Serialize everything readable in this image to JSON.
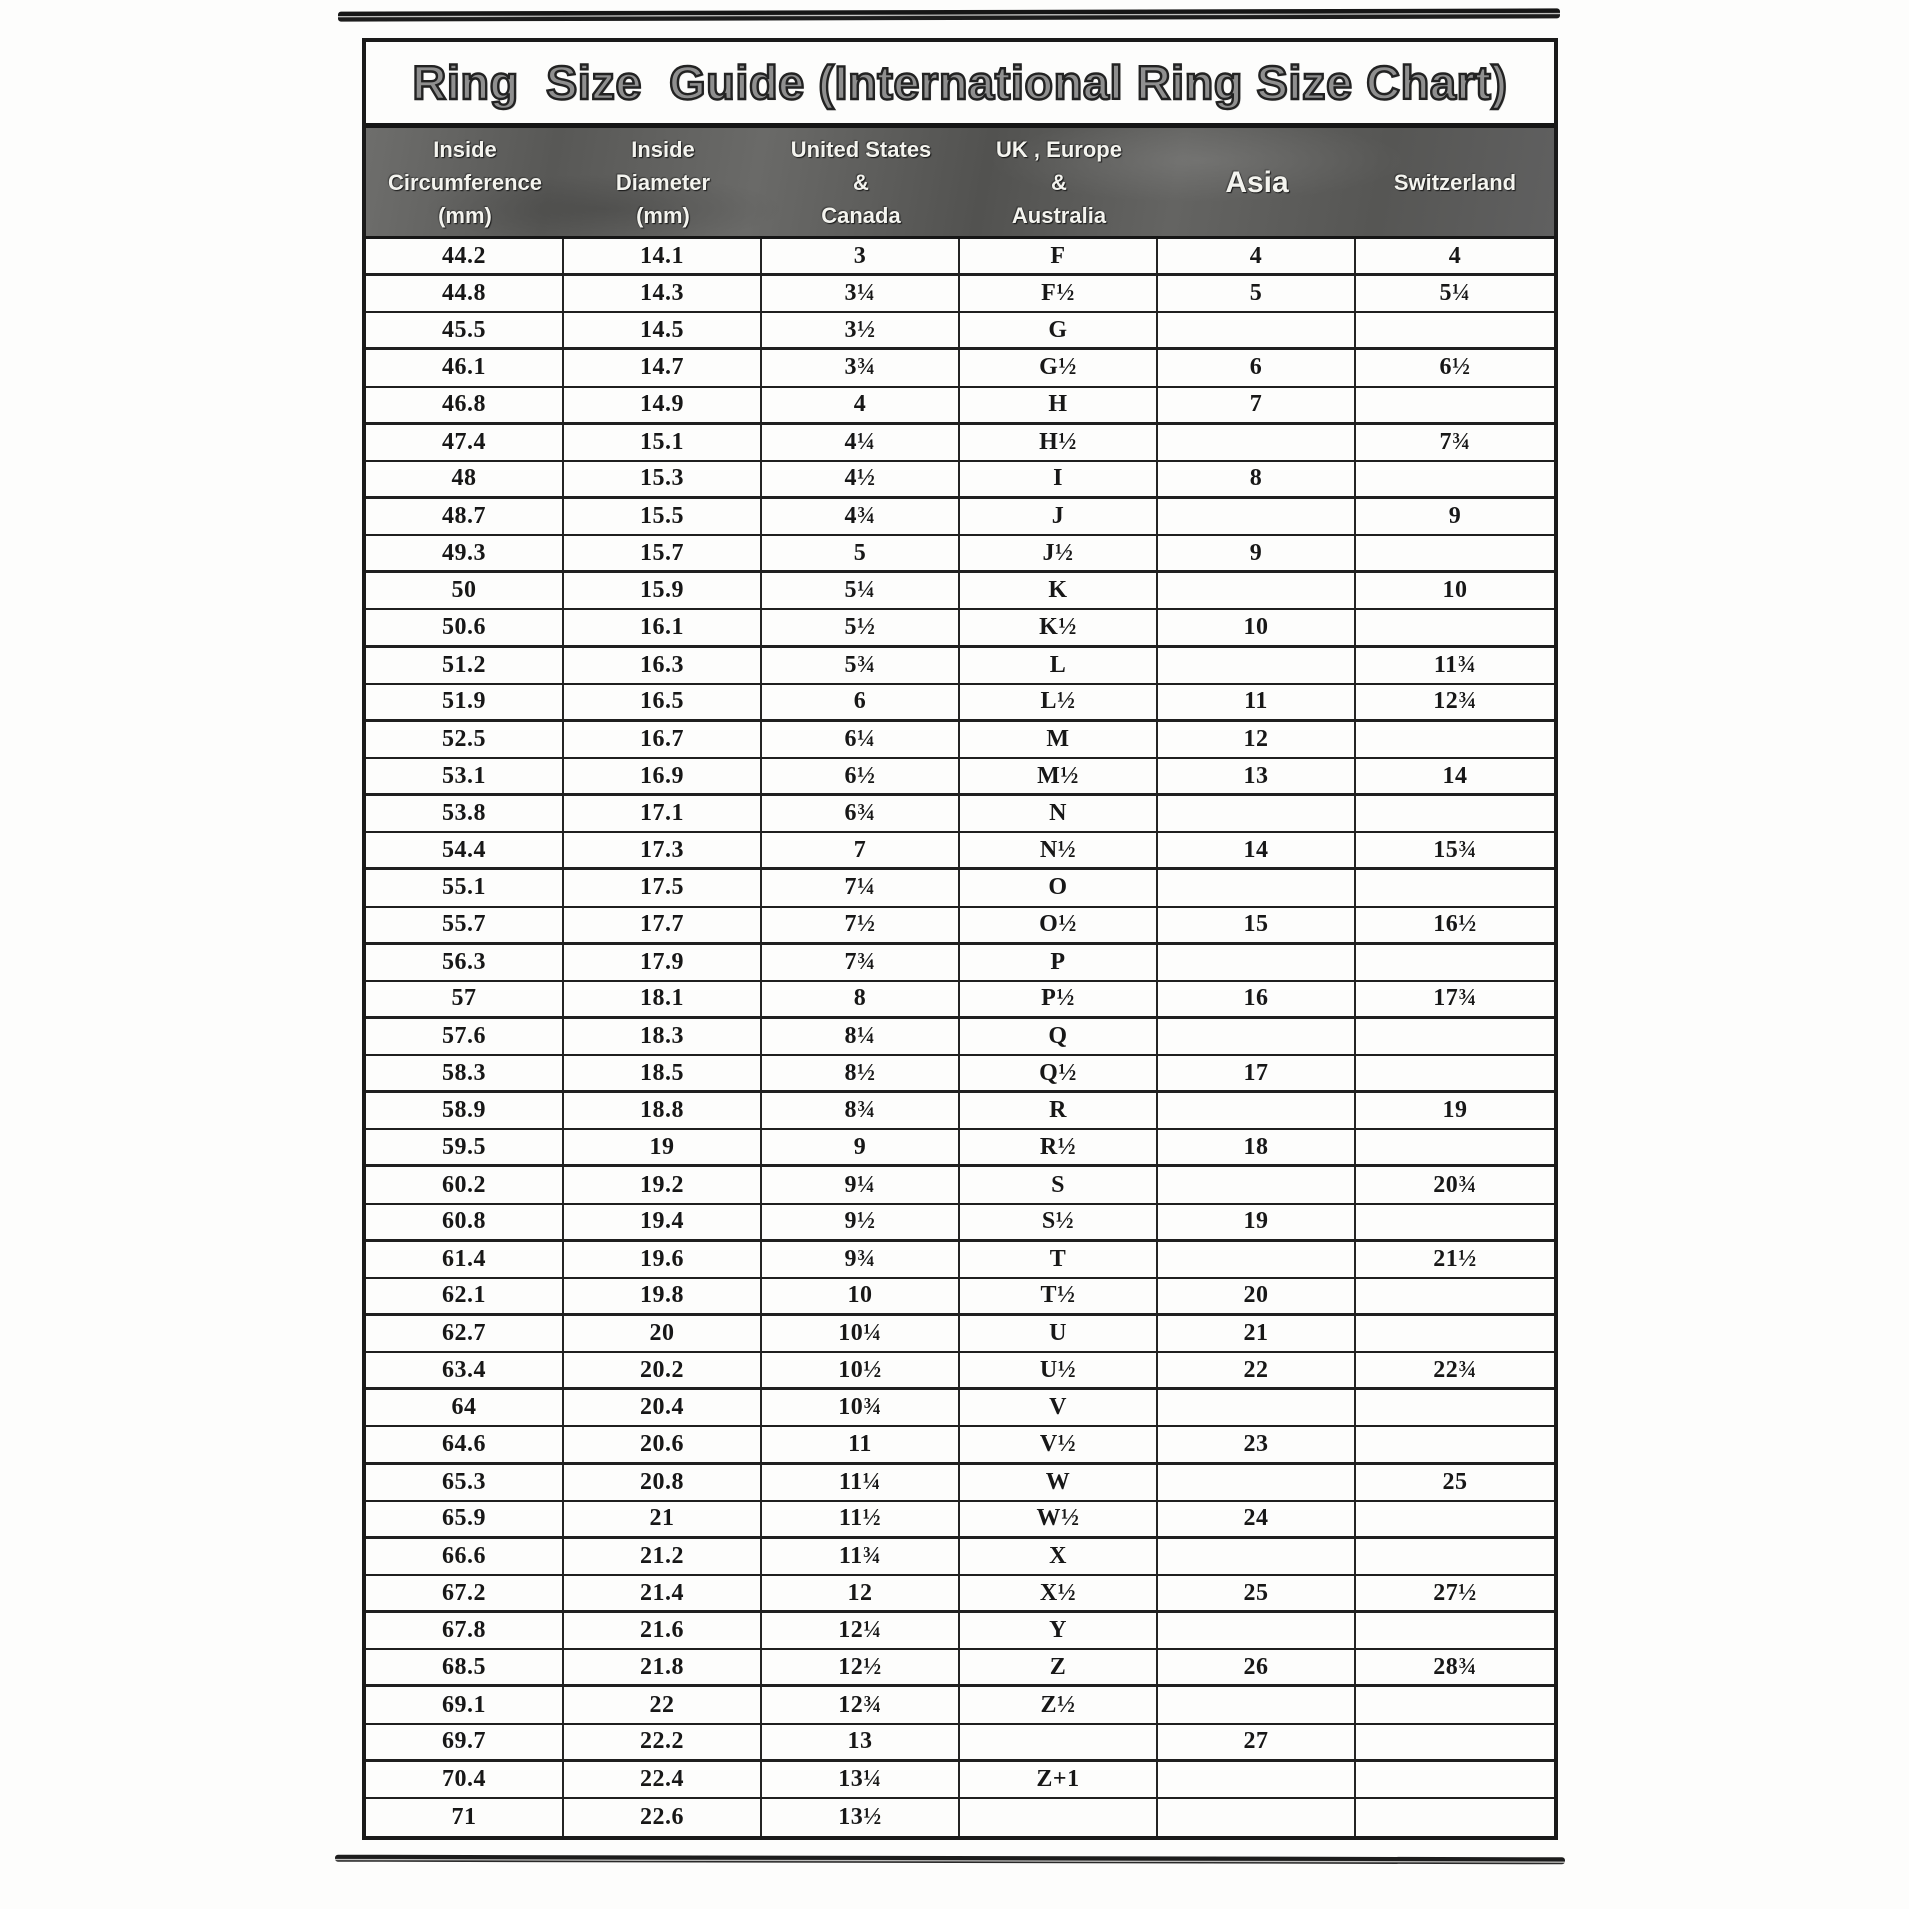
{
  "page": {
    "title": "Ring  Size  Guide (International Ring Size Chart)"
  },
  "colors": {
    "line": "#1a1a1a",
    "header_background": "#5d5d5b",
    "header_text": "#f4f4ef",
    "title_fill": "#8f8f8f",
    "page_background": "#fdfdfc"
  },
  "table": {
    "headers": [
      {
        "lines": [
          "Inside",
          "Circumference",
          "(mm)"
        ],
        "big": false
      },
      {
        "lines": [
          "Inside",
          "Diameter",
          "(mm)"
        ],
        "big": false
      },
      {
        "lines": [
          "United States",
          "&",
          "Canada"
        ],
        "big": false
      },
      {
        "lines": [
          "UK , Europe",
          "&",
          "Australia"
        ],
        "big": false
      },
      {
        "lines": [
          "Asia"
        ],
        "big": true
      },
      {
        "lines": [
          "Switzerland"
        ],
        "big": false
      }
    ],
    "rows": [
      [
        "44.2",
        "14.1",
        "3",
        "F",
        "4",
        "4"
      ],
      [
        "44.8",
        "14.3",
        "3¼",
        "F½",
        "5",
        "5¼"
      ],
      [
        "45.5",
        "14.5",
        "3½",
        "G",
        "",
        ""
      ],
      [
        "46.1",
        "14.7",
        "3¾",
        "G½",
        "6",
        "6½"
      ],
      [
        "46.8",
        "14.9",
        "4",
        "H",
        "7",
        ""
      ],
      [
        "47.4",
        "15.1",
        "4¼",
        "H½",
        "",
        "7¾"
      ],
      [
        "48",
        "15.3",
        "4½",
        "I",
        "8",
        ""
      ],
      [
        "48.7",
        "15.5",
        "4¾",
        "J",
        "",
        "9"
      ],
      [
        "49.3",
        "15.7",
        "5",
        "J½",
        "9",
        ""
      ],
      [
        "50",
        "15.9",
        "5¼",
        "K",
        "",
        "10"
      ],
      [
        "50.6",
        "16.1",
        "5½",
        "K½",
        "10",
        ""
      ],
      [
        "51.2",
        "16.3",
        "5¾",
        "L",
        "",
        "11¾"
      ],
      [
        "51.9",
        "16.5",
        "6",
        "L½",
        "11",
        "12¾"
      ],
      [
        "52.5",
        "16.7",
        "6¼",
        "M",
        "12",
        ""
      ],
      [
        "53.1",
        "16.9",
        "6½",
        "M½",
        "13",
        "14"
      ],
      [
        "53.8",
        "17.1",
        "6¾",
        "N",
        "",
        ""
      ],
      [
        "54.4",
        "17.3",
        "7",
        "N½",
        "14",
        "15¾"
      ],
      [
        "55.1",
        "17.5",
        "7¼",
        "O",
        "",
        ""
      ],
      [
        "55.7",
        "17.7",
        "7½",
        "O½",
        "15",
        "16½"
      ],
      [
        "56.3",
        "17.9",
        "7¾",
        "P",
        "",
        ""
      ],
      [
        "57",
        "18.1",
        "8",
        "P½",
        "16",
        "17¾"
      ],
      [
        "57.6",
        "18.3",
        "8¼",
        "Q",
        "",
        ""
      ],
      [
        "58.3",
        "18.5",
        "8½",
        "Q½",
        "17",
        ""
      ],
      [
        "58.9",
        "18.8",
        "8¾",
        "R",
        "",
        "19"
      ],
      [
        "59.5",
        "19",
        "9",
        "R½",
        "18",
        ""
      ],
      [
        "60.2",
        "19.2",
        "9¼",
        "S",
        "",
        "20¾"
      ],
      [
        "60.8",
        "19.4",
        "9½",
        "S½",
        "19",
        ""
      ],
      [
        "61.4",
        "19.6",
        "9¾",
        "T",
        "",
        "21½"
      ],
      [
        "62.1",
        "19.8",
        "10",
        "T½",
        "20",
        ""
      ],
      [
        "62.7",
        "20",
        "10¼",
        "U",
        "21",
        ""
      ],
      [
        "63.4",
        "20.2",
        "10½",
        "U½",
        "22",
        "22¾"
      ],
      [
        "64",
        "20.4",
        "10¾",
        "V",
        "",
        ""
      ],
      [
        "64.6",
        "20.6",
        "11",
        "V½",
        "23",
        ""
      ],
      [
        "65.3",
        "20.8",
        "11¼",
        "W",
        "",
        "25"
      ],
      [
        "65.9",
        "21",
        "11½",
        "W½",
        "24",
        ""
      ],
      [
        "66.6",
        "21.2",
        "11¾",
        "X",
        "",
        ""
      ],
      [
        "67.2",
        "21.4",
        "12",
        "X½",
        "25",
        "27½"
      ],
      [
        "67.8",
        "21.6",
        "12¼",
        "Y",
        "",
        ""
      ],
      [
        "68.5",
        "21.8",
        "12½",
        "Z",
        "26",
        "28¾"
      ],
      [
        "69.1",
        "22",
        "12¾",
        "Z½",
        "",
        ""
      ],
      [
        "69.7",
        "22.2",
        "13",
        "",
        "27",
        ""
      ],
      [
        "70.4",
        "22.4",
        "13¼",
        "Z+1",
        "",
        ""
      ],
      [
        "71",
        "22.6",
        "13½",
        "",
        "",
        ""
      ]
    ]
  }
}
